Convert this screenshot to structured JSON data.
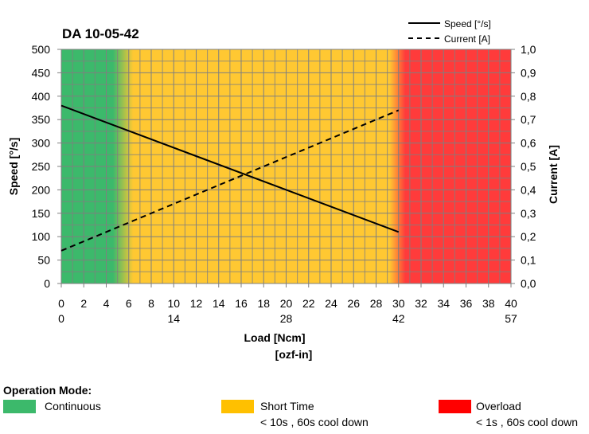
{
  "chart_data": {
    "type": "line",
    "title": "DA 10-05-42",
    "xlabel": "Load [Ncm]",
    "xlabel2": "[ozf-in]",
    "ylabel": "Speed  [°/s]",
    "ylabel_right": "Current [A]",
    "xlim": [
      0,
      40
    ],
    "ylim": [
      0,
      500
    ],
    "ylim_right": [
      0,
      1.0
    ],
    "x_ticks": [
      "0",
      "2",
      "4",
      "6",
      "8",
      "10",
      "12",
      "14",
      "16",
      "18",
      "20",
      "22",
      "24",
      "26",
      "28",
      "30",
      "32",
      "34",
      "36",
      "38",
      "40"
    ],
    "x2_ticks": [
      {
        "at": 0,
        "label": "0"
      },
      {
        "at": 10,
        "label": "14"
      },
      {
        "at": 20,
        "label": "28"
      },
      {
        "at": 30,
        "label": "42"
      },
      {
        "at": 40,
        "label": "57"
      }
    ],
    "y_ticks": [
      "0",
      "50",
      "100",
      "150",
      "200",
      "250",
      "300",
      "350",
      "400",
      "450",
      "500"
    ],
    "y_right_ticks": [
      "0,0",
      "0,1",
      "0,2",
      "0,3",
      "0,4",
      "0,5",
      "0,6",
      "0,7",
      "0,8",
      "0,9",
      "1,0"
    ],
    "grid": true,
    "legend_position": "top-right",
    "series": [
      {
        "name": "Speed [°/s]",
        "axis": "left",
        "style": "solid",
        "x": [
          0,
          30
        ],
        "y": [
          380,
          110
        ]
      },
      {
        "name": "Current [A]",
        "axis": "right",
        "style": "dashed",
        "x": [
          0,
          30
        ],
        "y": [
          0.14,
          0.74
        ]
      }
    ],
    "zones": [
      {
        "name": "Continuous",
        "from": 0,
        "to": 6,
        "color": "#3cb96b"
      },
      {
        "name": "Short Time",
        "from": 6,
        "to": 30,
        "color": "#ffc832"
      },
      {
        "name": "Overload",
        "from": 30,
        "to": 40,
        "color": "#ff3b3b"
      }
    ]
  },
  "operation_mode": {
    "title": "Operation Mode:",
    "items": [
      {
        "label": "Continuous",
        "sub": "",
        "color": "#3cb96b"
      },
      {
        "label": "Short Time",
        "sub": "< 10s , 60s cool down",
        "color": "#ffc000"
      },
      {
        "label": "Overload",
        "sub": "< 1s , 60s cool down",
        "color": "#ff0000"
      }
    ]
  }
}
